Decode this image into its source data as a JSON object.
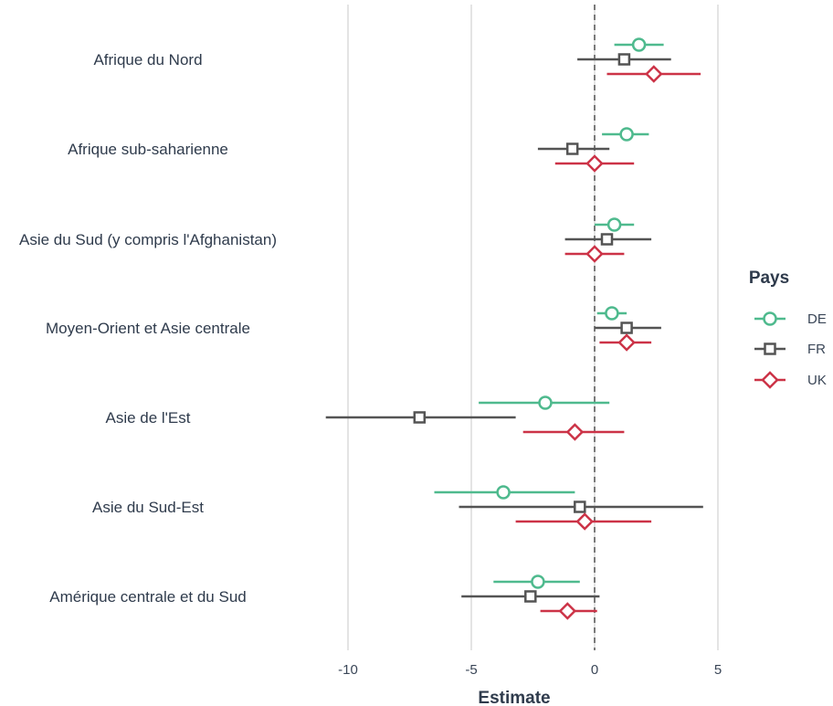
{
  "chart_data": {
    "type": "scatter",
    "subtype": "coefficient-plot-with-error-bars",
    "xlabel": "Estimate",
    "xlim": [
      -12,
      5.5
    ],
    "xticks": [
      -10,
      -5,
      0,
      5
    ],
    "reference_line": {
      "x": 0,
      "style": "dashed"
    },
    "grid": "vertical-major",
    "legend": {
      "title": "Pays",
      "position": "right"
    },
    "categories": [
      "Afrique du Nord",
      "Afrique sub-saharienne",
      "Asie du Sud (y compris l'Afghanistan)",
      "Moyen-Orient et Asie centrale",
      "Asie de l'Est",
      "Asie du Sud-Est",
      "Amérique centrale et du Sud"
    ],
    "series": [
      {
        "name": "DE",
        "color": "#4fba8e",
        "marker": "circle",
        "points": [
          {
            "estimate": 1.8,
            "low": 0.8,
            "high": 2.8
          },
          {
            "estimate": 1.3,
            "low": 0.3,
            "high": 2.2
          },
          {
            "estimate": 0.8,
            "low": 0.0,
            "high": 1.6
          },
          {
            "estimate": 0.7,
            "low": 0.1,
            "high": 1.3
          },
          {
            "estimate": -2.0,
            "low": -4.7,
            "high": 0.6
          },
          {
            "estimate": -3.7,
            "low": -6.5,
            "high": -0.8
          },
          {
            "estimate": -2.3,
            "low": -4.1,
            "high": -0.6
          }
        ]
      },
      {
        "name": "FR",
        "color": "#545454",
        "marker": "square",
        "points": [
          {
            "estimate": 1.2,
            "low": -0.7,
            "high": 3.1
          },
          {
            "estimate": -0.9,
            "low": -2.3,
            "high": 0.6
          },
          {
            "estimate": 0.5,
            "low": -1.2,
            "high": 2.3
          },
          {
            "estimate": 1.3,
            "low": 0.0,
            "high": 2.7
          },
          {
            "estimate": -7.1,
            "low": -10.9,
            "high": -3.2
          },
          {
            "estimate": -0.6,
            "low": -5.5,
            "high": 4.4
          },
          {
            "estimate": -2.6,
            "low": -5.4,
            "high": 0.2
          }
        ]
      },
      {
        "name": "UK",
        "color": "#cc3347",
        "marker": "diamond",
        "points": [
          {
            "estimate": 2.4,
            "low": 0.5,
            "high": 4.3
          },
          {
            "estimate": 0.0,
            "low": -1.6,
            "high": 1.6
          },
          {
            "estimate": 0.0,
            "low": -1.2,
            "high": 1.2
          },
          {
            "estimate": 1.3,
            "low": 0.2,
            "high": 2.3
          },
          {
            "estimate": -0.8,
            "low": -2.9,
            "high": 1.2
          },
          {
            "estimate": -0.4,
            "low": -3.2,
            "high": 2.3
          },
          {
            "estimate": -1.1,
            "low": -2.2,
            "high": 0.1
          }
        ]
      }
    ]
  }
}
